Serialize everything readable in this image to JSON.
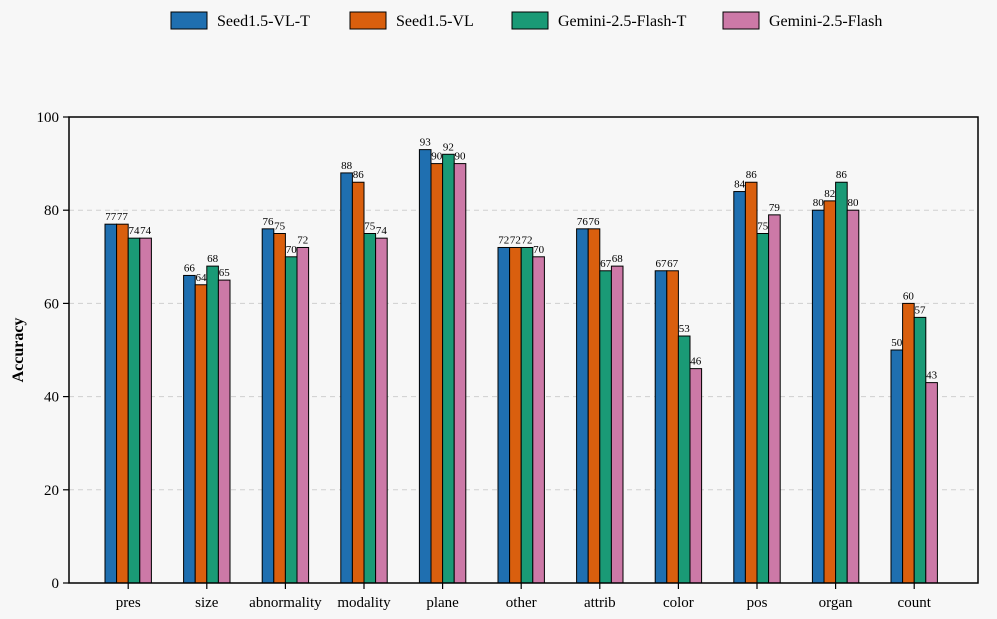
{
  "chart_data": {
    "type": "bar",
    "title": "",
    "xlabel": "",
    "ylabel": "Accuracy",
    "ylim": [
      0,
      100
    ],
    "yticks": [
      0,
      20,
      40,
      60,
      80,
      100
    ],
    "grid": true,
    "legend_position": "top-center",
    "categories": [
      "pres",
      "size",
      "abnormality",
      "modality",
      "plane",
      "other",
      "attrib",
      "color",
      "pos",
      "organ",
      "count"
    ],
    "series": [
      {
        "name": "Seed1.5-VL-T",
        "color": "#1f6fb0",
        "values": [
          77,
          66,
          76,
          88,
          93,
          72,
          76,
          67,
          84,
          80,
          50
        ],
        "labels": [
          "77",
          "66",
          "76",
          "88",
          "93",
          "72",
          "76",
          "67",
          "84",
          "80",
          "50"
        ]
      },
      {
        "name": "Seed1.5-VL",
        "color": "#d95f0e",
        "values": [
          77,
          64,
          75,
          86,
          90,
          72,
          76,
          67,
          86,
          82,
          60
        ],
        "labels": [
          "77",
          "64",
          "75",
          "86",
          "90",
          "72",
          "76",
          "67",
          "86",
          "82",
          "60"
        ]
      },
      {
        "name": "Gemini-2.5-Flash-T",
        "color": "#1a9a76",
        "values": [
          74,
          68,
          70,
          75,
          92,
          72,
          67,
          53,
          75,
          86,
          57
        ],
        "labels": [
          "74",
          "68",
          "70",
          "75",
          "92",
          "72",
          "67",
          "53",
          "75",
          "86",
          "57"
        ]
      },
      {
        "name": "Gemini-2.5-Flash",
        "color": "#cc79a7",
        "values": [
          74,
          65,
          72,
          74,
          90,
          70,
          68,
          46,
          79,
          80,
          43
        ],
        "labels": [
          "74",
          "65",
          "72",
          "74",
          "90",
          "70",
          "68",
          "46",
          "79",
          "80",
          "43"
        ]
      }
    ]
  }
}
